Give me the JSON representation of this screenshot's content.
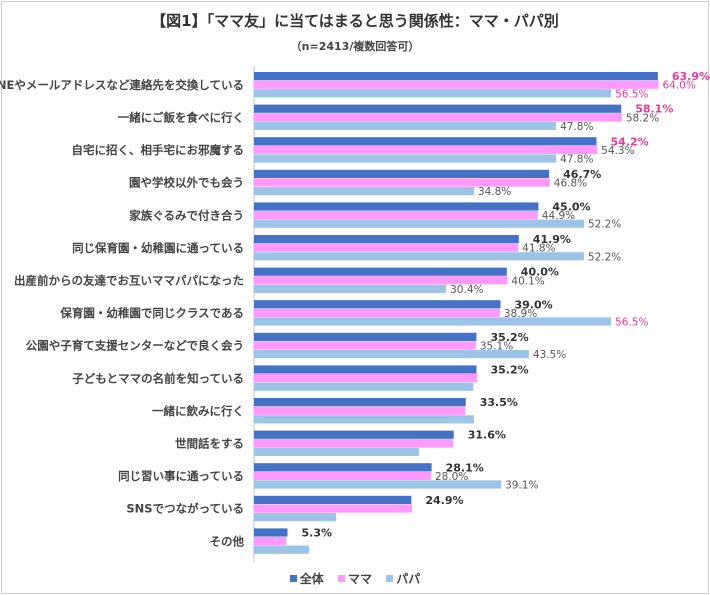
{
  "title": "【図1】「ママ友」に当てはまると思う関係性：ママ・パパ別",
  "subtitle": "（n=2413/複数回答可）",
  "colors": {
    "全体": "#4472c4",
    "ママ": "#ff99ff",
    "パパ": "#9dc3e6",
    "highlight": "#e6399b",
    "label": "#555555",
    "label_total": "#333333"
  },
  "chart_data": {
    "type": "bar",
    "orientation": "horizontal",
    "xlim": [
      0,
      70
    ],
    "grid": false,
    "legend": "bottom",
    "categories": [
      "LINEやメールアドレスなど連絡先を交換している",
      "一緒にご飯を食べに行く",
      "自宅に招く、相手宅にお邪魔する",
      "園や学校以外でも会う",
      "家族ぐるみで付き合う",
      "同じ保育園・幼稚園に通っている",
      "出産前からの友達でお互いママパパになった",
      "保育園・幼稚園で同じクラスである",
      "公園や子育て支援センターなどで良く会う",
      "子どもとママの名前を知っている",
      "一緒に飲みに行く",
      "世間話をする",
      "同じ習い事に通っている",
      "SNSでつながっている",
      "その他"
    ],
    "series": [
      {
        "name": "全体",
        "values": [
          63.9,
          58.1,
          54.2,
          46.7,
          45.0,
          41.9,
          40.0,
          39.0,
          35.2,
          35.2,
          33.5,
          31.6,
          28.1,
          24.9,
          5.3
        ],
        "labels": [
          "63.9%",
          "58.1%",
          "54.2%",
          "46.7%",
          "45.0%",
          "41.9%",
          "40.0%",
          "39.0%",
          "35.2%",
          "35.2%",
          "33.5%",
          "31.6%",
          "28.1%",
          "24.9%",
          "5.3%"
        ],
        "highlight": [
          true,
          true,
          true,
          false,
          false,
          false,
          false,
          false,
          false,
          false,
          false,
          false,
          false,
          false,
          false
        ]
      },
      {
        "name": "ママ",
        "values": [
          64.0,
          58.2,
          54.3,
          46.8,
          44.9,
          41.8,
          40.1,
          38.9,
          35.1,
          35.3,
          33.4,
          31.5,
          28.0,
          25.0,
          5.1
        ],
        "labels": [
          "64.0%",
          "58.2%",
          "54.3%",
          "46.8%",
          "44.9%",
          "41.8%",
          "40.1%",
          "38.9%",
          "35.1%",
          null,
          null,
          null,
          "28.0%",
          null,
          null
        ],
        "highlight": [
          true,
          false,
          false,
          false,
          false,
          false,
          false,
          false,
          false,
          false,
          false,
          false,
          false,
          false,
          false
        ]
      },
      {
        "name": "パパ",
        "values": [
          56.5,
          47.8,
          47.8,
          34.8,
          52.2,
          52.2,
          30.4,
          56.5,
          43.5,
          34.7,
          34.8,
          26.1,
          39.1,
          13.0,
          8.7
        ],
        "labels": [
          "56.5%",
          "47.8%",
          "47.8%",
          "34.8%",
          "52.2%",
          "52.2%",
          "30.4%",
          "56.5%",
          "43.5%",
          null,
          null,
          null,
          "39.1%",
          null,
          null
        ],
        "highlight": [
          true,
          false,
          false,
          false,
          false,
          false,
          false,
          true,
          false,
          false,
          false,
          false,
          false,
          false,
          false
        ]
      }
    ]
  }
}
